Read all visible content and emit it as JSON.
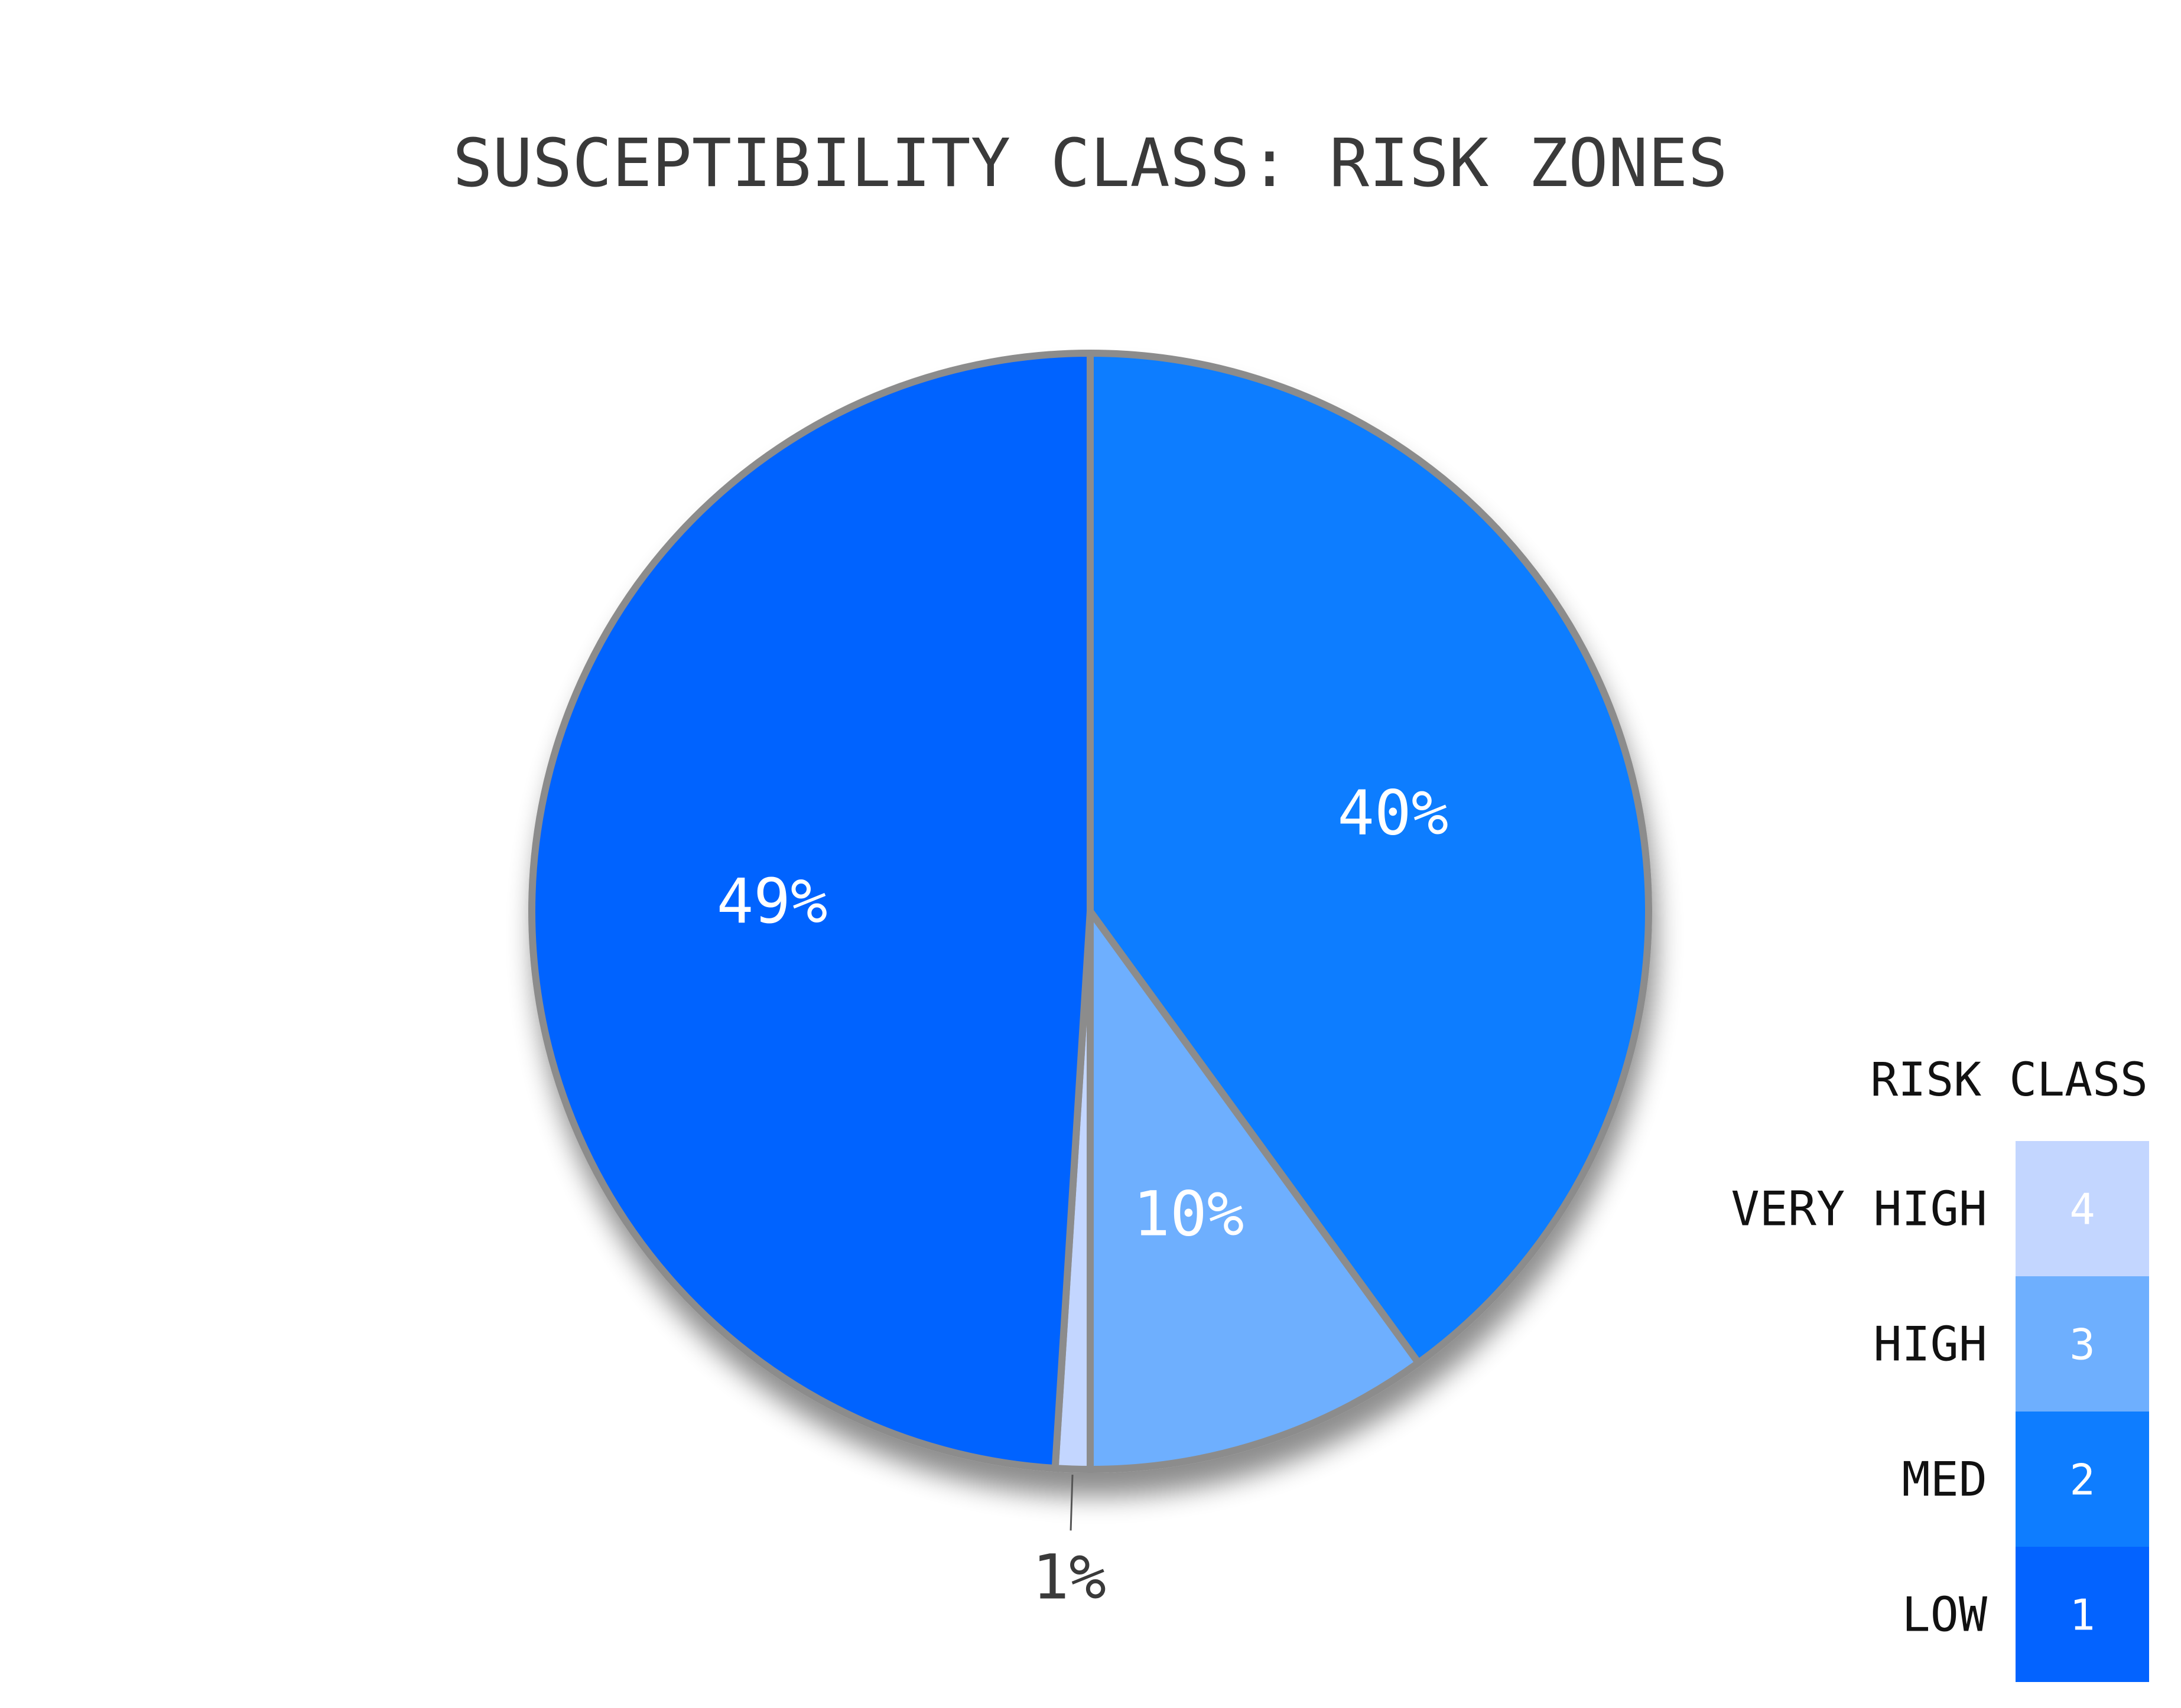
{
  "chart_data": {
    "type": "pie",
    "title": "SUSCEPTIBILITY CLASS: RISK ZONES",
    "slices": [
      {
        "label": "MED",
        "value": 40,
        "display": "40%",
        "color": "#0e7dff",
        "class": 2
      },
      {
        "label": "HIGH",
        "value": 10,
        "display": "10%",
        "color": "#6eaffe",
        "class": 3
      },
      {
        "label": "VERY HIGH",
        "value": 1,
        "display": "1%",
        "color": "#c3d6ff",
        "class": 4
      },
      {
        "label": "LOW",
        "value": 49,
        "display": "49%",
        "color": "#0363ff",
        "class": 1
      }
    ],
    "legend": {
      "title": "RISK CLASS",
      "placement": "bottom-right",
      "items": [
        {
          "label": "VERY HIGH",
          "num": "4",
          "color": "#c3d6ff"
        },
        {
          "label": "HIGH",
          "num": "3",
          "color": "#6eaffe"
        },
        {
          "label": "MED",
          "num": "2",
          "color": "#0e7dff"
        },
        {
          "label": "LOW",
          "num": "1",
          "color": "#0363ff"
        }
      ]
    }
  }
}
